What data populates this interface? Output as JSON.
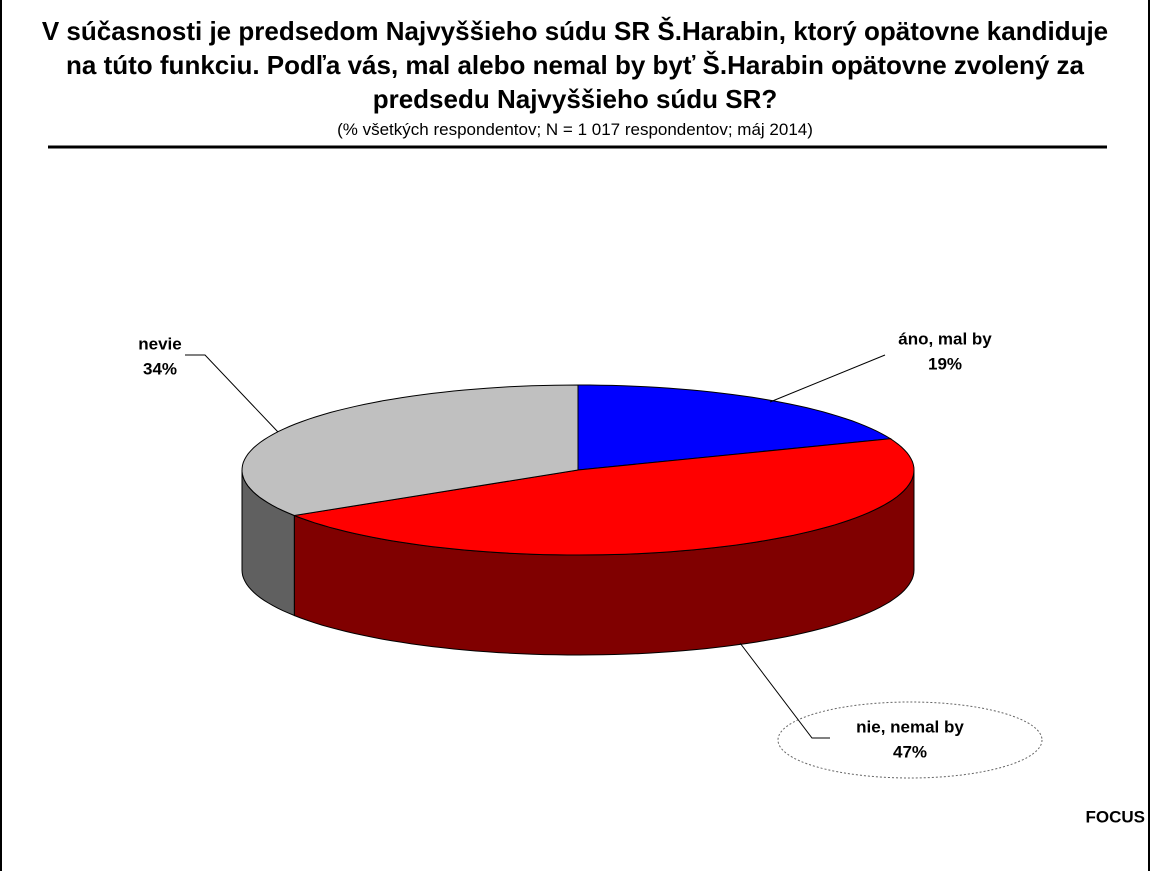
{
  "chart_data": {
    "type": "pie",
    "title": "V súčasnosti je predsedom Najvyššieho súdu SR Š.Harabin, ktorý opätovne kandiduje na  túto funkciu. Podľa vás, mal alebo nemal by byť Š.Harabin opätovne zvolený za predsedu Najvyššieho súdu SR?",
    "subtitle": "(% všetkých respondentov; N = 1 017 respondentov; máj 2014)",
    "labels": [
      "áno, mal by",
      "nie, nemal by",
      "nevie"
    ],
    "values": [
      19,
      47,
      34
    ],
    "value_labels": [
      "19%",
      "47%",
      "34%"
    ],
    "colors": [
      "#0000ff",
      "#ff0000",
      "#c0c0c0"
    ],
    "side_colors": [
      "#000080",
      "#800000",
      "#606060"
    ],
    "source": "FOCUS"
  }
}
